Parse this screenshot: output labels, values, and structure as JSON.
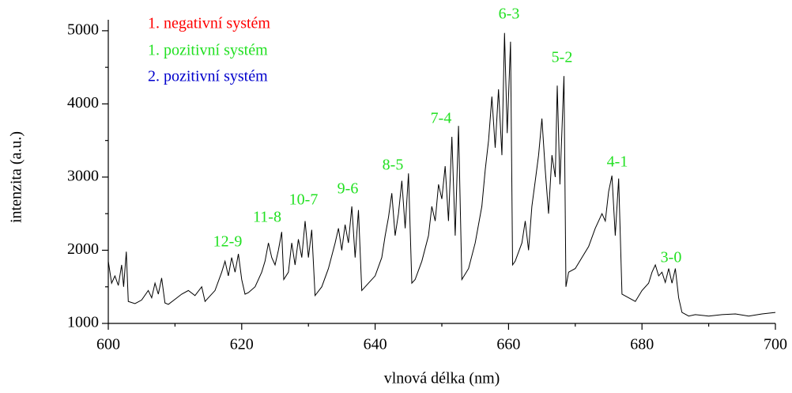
{
  "chart_data": {
    "type": "line",
    "x_label": "vlnová délka (nm)",
    "y_label": "intenzita (a.u.)",
    "color": "#000000",
    "xlim": [
      600,
      700
    ],
    "ylim": [
      1000,
      5150
    ],
    "xticks": [
      600,
      620,
      640,
      660,
      680,
      700
    ],
    "yticks": [
      1000,
      2000,
      3000,
      4000,
      5000
    ],
    "xminorticks": [
      610,
      630,
      650,
      670,
      690
    ],
    "yminorticks": [
      1500,
      2500,
      3500,
      4500
    ],
    "legend": [
      {
        "text": "1. negativní systém",
        "color": "#ff0000"
      },
      {
        "text": "1. pozitivní systém",
        "color": "#22e022"
      },
      {
        "text": "2. pozitivní systém",
        "color": "#0000cc"
      }
    ],
    "annotations": [
      {
        "text": "12-9",
        "color": "#22e022"
      },
      {
        "text": "11-8",
        "color": "#22e022"
      },
      {
        "text": "10-7",
        "color": "#22e022"
      },
      {
        "text": "9-6",
        "color": "#22e022"
      },
      {
        "text": "8-5",
        "color": "#22e022"
      },
      {
        "text": "7-4",
        "color": "#22e022"
      },
      {
        "text": "6-3",
        "color": "#22e022"
      },
      {
        "text": "5-2",
        "color": "#22e022"
      },
      {
        "text": "4-1",
        "color": "#22e022"
      },
      {
        "text": "3-0",
        "color": "#22e022"
      }
    ],
    "x": [
      600,
      600.5,
      601,
      601.5,
      602,
      602.3,
      602.7,
      603,
      604,
      605,
      606,
      606.5,
      607,
      607.5,
      608,
      608.5,
      609,
      610,
      611,
      612,
      613,
      614,
      614.5,
      615,
      616,
      617,
      617.5,
      618,
      618.5,
      619,
      619.5,
      620,
      620.5,
      621,
      622,
      623,
      623.5,
      624,
      624.5,
      625,
      625.5,
      626,
      626.3,
      627,
      627.5,
      628,
      628.5,
      629,
      629.5,
      630,
      630.5,
      631,
      632,
      633,
      634,
      634.5,
      635,
      635.5,
      636,
      636.5,
      637,
      637.5,
      638,
      639,
      640,
      641,
      641.5,
      642,
      642.5,
      643,
      643.5,
      644,
      644.5,
      645,
      645.5,
      646,
      647,
      648,
      648.5,
      649,
      649.5,
      650,
      650.5,
      651,
      651.5,
      652,
      652.5,
      653,
      654,
      655,
      656,
      656.5,
      657,
      657.5,
      658,
      658.5,
      659,
      659.4,
      659.8,
      660.3,
      660.6,
      661,
      662,
      662.5,
      663,
      663.5,
      664,
      664.5,
      665,
      665.5,
      666,
      666.5,
      667,
      667.3,
      667.7,
      668.3,
      668.6,
      669,
      670,
      671,
      672,
      673,
      674,
      674.5,
      675,
      675.5,
      676,
      676.5,
      677,
      678,
      679,
      680,
      681,
      681.5,
      682,
      682.5,
      683,
      683.5,
      684,
      684.5,
      685,
      685.5,
      686,
      687,
      688,
      690,
      692,
      694,
      696,
      698,
      700
    ],
    "values": [
      1850,
      1550,
      1650,
      1520,
      1800,
      1500,
      1980,
      1300,
      1270,
      1320,
      1450,
      1350,
      1550,
      1400,
      1620,
      1280,
      1260,
      1330,
      1400,
      1450,
      1380,
      1500,
      1300,
      1350,
      1450,
      1700,
      1850,
      1650,
      1900,
      1700,
      1950,
      1600,
      1400,
      1420,
      1500,
      1700,
      1850,
      2100,
      1900,
      1800,
      2000,
      2250,
      1600,
      1700,
      2100,
      1800,
      2150,
      1900,
      2400,
      1900,
      2280,
      1380,
      1500,
      1750,
      2100,
      2300,
      2000,
      2350,
      2100,
      2600,
      1900,
      2550,
      1450,
      1550,
      1650,
      1900,
      2200,
      2450,
      2780,
      2200,
      2500,
      2950,
      2300,
      3050,
      1550,
      1600,
      1850,
      2200,
      2600,
      2400,
      2900,
      2700,
      3150,
      2400,
      3550,
      2200,
      3700,
      1600,
      1750,
      2100,
      2600,
      3100,
      3500,
      4100,
      3400,
      4200,
      3300,
      4970,
      3600,
      4850,
      1800,
      1850,
      2100,
      2400,
      2000,
      2600,
      2950,
      3300,
      3800,
      3100,
      2500,
      3300,
      3000,
      4250,
      2900,
      4380,
      1500,
      1700,
      1750,
      1900,
      2050,
      2300,
      2500,
      2400,
      2800,
      3020,
      2200,
      2980,
      1400,
      1350,
      1300,
      1450,
      1550,
      1700,
      1800,
      1650,
      1700,
      1560,
      1750,
      1550,
      1750,
      1350,
      1150,
      1100,
      1120,
      1100,
      1120,
      1130,
      1100,
      1130,
      1150
    ]
  }
}
